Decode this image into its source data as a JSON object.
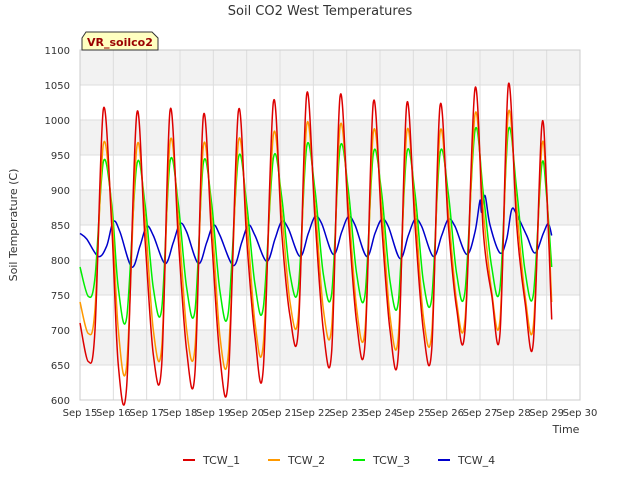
{
  "chart_data": {
    "type": "line",
    "title": "Soil CO2 West Temperatures",
    "xlabel": "Time",
    "ylabel": "Soil Temperature (C)",
    "annotation": "VR_soilco2",
    "xlim": [
      15,
      30
    ],
    "ylim": [
      600,
      1100
    ],
    "x_ticks": [
      {
        "v": 15,
        "label": "Sep 15"
      },
      {
        "v": 16,
        "label": "Sep 16"
      },
      {
        "v": 17,
        "label": "Sep 17"
      },
      {
        "v": 18,
        "label": "Sep 18"
      },
      {
        "v": 19,
        "label": "Sep 19"
      },
      {
        "v": 20,
        "label": "Sep 20"
      },
      {
        "v": 21,
        "label": "Sep 21"
      },
      {
        "v": 22,
        "label": "Sep 22"
      },
      {
        "v": 23,
        "label": "Sep 23"
      },
      {
        "v": 24,
        "label": "Sep 24"
      },
      {
        "v": 25,
        "label": "Sep 25"
      },
      {
        "v": 26,
        "label": "Sep 26"
      },
      {
        "v": 27,
        "label": "Sep 27"
      },
      {
        "v": 28,
        "label": "Sep 28"
      },
      {
        "v": 29,
        "label": "Sep 29"
      },
      {
        "v": 30,
        "label": "Sep 30"
      }
    ],
    "y_ticks": [
      600,
      650,
      700,
      750,
      800,
      850,
      900,
      950,
      1000,
      1050,
      1100
    ],
    "grid": true,
    "legend_position": "bottom",
    "series": [
      {
        "name": "TCW_1",
        "color": "#dd0000",
        "points": [
          [
            15.0,
            710
          ],
          [
            15.25,
            655
          ],
          [
            15.45,
            700
          ],
          [
            15.7,
            1015
          ],
          [
            15.95,
            850
          ],
          [
            16.15,
            650
          ],
          [
            16.4,
            620
          ],
          [
            16.7,
            1008
          ],
          [
            16.95,
            830
          ],
          [
            17.2,
            665
          ],
          [
            17.45,
            650
          ],
          [
            17.7,
            1013
          ],
          [
            17.95,
            830
          ],
          [
            18.2,
            670
          ],
          [
            18.45,
            640
          ],
          [
            18.7,
            1005
          ],
          [
            18.95,
            830
          ],
          [
            19.2,
            660
          ],
          [
            19.45,
            630
          ],
          [
            19.75,
            1012
          ],
          [
            20.0,
            830
          ],
          [
            20.25,
            690
          ],
          [
            20.5,
            645
          ],
          [
            20.8,
            1025
          ],
          [
            21.05,
            840
          ],
          [
            21.3,
            720
          ],
          [
            21.55,
            700
          ],
          [
            21.8,
            1037
          ],
          [
            22.05,
            860
          ],
          [
            22.3,
            700
          ],
          [
            22.55,
            670
          ],
          [
            22.8,
            1033
          ],
          [
            23.05,
            860
          ],
          [
            23.3,
            710
          ],
          [
            23.55,
            680
          ],
          [
            23.8,
            1025
          ],
          [
            24.05,
            850
          ],
          [
            24.3,
            700
          ],
          [
            24.55,
            665
          ],
          [
            24.8,
            1022
          ],
          [
            25.05,
            850
          ],
          [
            25.3,
            700
          ],
          [
            25.55,
            672
          ],
          [
            25.8,
            1020
          ],
          [
            26.05,
            850
          ],
          [
            26.3,
            730
          ],
          [
            26.55,
            700
          ],
          [
            26.85,
            1045
          ],
          [
            27.1,
            840
          ],
          [
            27.35,
            750
          ],
          [
            27.6,
            695
          ],
          [
            27.85,
            1050
          ],
          [
            28.1,
            850
          ],
          [
            28.35,
            740
          ],
          [
            28.6,
            682
          ],
          [
            28.85,
            990
          ],
          [
            29.0,
            900
          ],
          [
            29.15,
            715
          ]
        ]
      },
      {
        "name": "TCW_2",
        "color": "#ff9900",
        "points": [
          [
            15.0,
            740
          ],
          [
            15.25,
            695
          ],
          [
            15.45,
            730
          ],
          [
            15.7,
            965
          ],
          [
            15.95,
            870
          ],
          [
            16.15,
            700
          ],
          [
            16.4,
            650
          ],
          [
            16.7,
            960
          ],
          [
            16.95,
            860
          ],
          [
            17.2,
            700
          ],
          [
            17.45,
            675
          ],
          [
            17.7,
            968
          ],
          [
            17.95,
            860
          ],
          [
            18.2,
            700
          ],
          [
            18.45,
            675
          ],
          [
            18.7,
            962
          ],
          [
            18.95,
            860
          ],
          [
            19.2,
            690
          ],
          [
            19.45,
            665
          ],
          [
            19.75,
            968
          ],
          [
            20.0,
            860
          ],
          [
            20.25,
            710
          ],
          [
            20.5,
            680
          ],
          [
            20.8,
            978
          ],
          [
            21.05,
            870
          ],
          [
            21.3,
            740
          ],
          [
            21.55,
            720
          ],
          [
            21.8,
            993
          ],
          [
            22.05,
            880
          ],
          [
            22.3,
            730
          ],
          [
            22.55,
            705
          ],
          [
            22.8,
            990
          ],
          [
            23.05,
            880
          ],
          [
            23.3,
            730
          ],
          [
            23.55,
            700
          ],
          [
            23.8,
            982
          ],
          [
            24.05,
            875
          ],
          [
            24.3,
            720
          ],
          [
            24.55,
            690
          ],
          [
            24.8,
            982
          ],
          [
            25.05,
            875
          ],
          [
            25.3,
            720
          ],
          [
            25.55,
            695
          ],
          [
            25.8,
            982
          ],
          [
            26.05,
            870
          ],
          [
            26.3,
            740
          ],
          [
            26.55,
            715
          ],
          [
            26.85,
            1008
          ],
          [
            27.1,
            870
          ],
          [
            27.35,
            755
          ],
          [
            27.6,
            715
          ],
          [
            27.85,
            1010
          ],
          [
            28.1,
            875
          ],
          [
            28.35,
            750
          ],
          [
            28.6,
            705
          ],
          [
            28.85,
            960
          ],
          [
            29.0,
            900
          ],
          [
            29.15,
            740
          ]
        ]
      },
      {
        "name": "TCW_3",
        "color": "#00ee00",
        "points": [
          [
            15.0,
            790
          ],
          [
            15.25,
            748
          ],
          [
            15.45,
            775
          ],
          [
            15.7,
            940
          ],
          [
            15.95,
            880
          ],
          [
            16.15,
            760
          ],
          [
            16.4,
            718
          ],
          [
            16.7,
            935
          ],
          [
            16.95,
            880
          ],
          [
            17.2,
            760
          ],
          [
            17.45,
            730
          ],
          [
            17.7,
            940
          ],
          [
            17.95,
            880
          ],
          [
            18.2,
            760
          ],
          [
            18.45,
            728
          ],
          [
            18.7,
            938
          ],
          [
            18.95,
            880
          ],
          [
            19.2,
            755
          ],
          [
            19.45,
            725
          ],
          [
            19.75,
            945
          ],
          [
            20.0,
            880
          ],
          [
            20.25,
            765
          ],
          [
            20.5,
            732
          ],
          [
            20.8,
            945
          ],
          [
            21.05,
            890
          ],
          [
            21.3,
            780
          ],
          [
            21.55,
            760
          ],
          [
            21.8,
            962
          ],
          [
            22.05,
            900
          ],
          [
            22.3,
            780
          ],
          [
            22.55,
            752
          ],
          [
            22.8,
            960
          ],
          [
            23.05,
            900
          ],
          [
            23.3,
            780
          ],
          [
            23.55,
            750
          ],
          [
            23.8,
            952
          ],
          [
            24.05,
            895
          ],
          [
            24.3,
            770
          ],
          [
            24.55,
            740
          ],
          [
            24.8,
            952
          ],
          [
            25.05,
            895
          ],
          [
            25.3,
            770
          ],
          [
            25.55,
            745
          ],
          [
            25.8,
            952
          ],
          [
            26.05,
            895
          ],
          [
            26.3,
            780
          ],
          [
            26.55,
            755
          ],
          [
            26.85,
            985
          ],
          [
            27.1,
            895
          ],
          [
            27.35,
            790
          ],
          [
            27.6,
            760
          ],
          [
            27.85,
            985
          ],
          [
            28.1,
            900
          ],
          [
            28.35,
            785
          ],
          [
            28.6,
            750
          ],
          [
            28.85,
            935
          ],
          [
            29.0,
            890
          ],
          [
            29.15,
            790
          ]
        ]
      },
      {
        "name": "TCW_4",
        "color": "#0000cc",
        "points": [
          [
            15.0,
            838
          ],
          [
            15.2,
            830
          ],
          [
            15.55,
            805
          ],
          [
            15.8,
            820
          ],
          [
            16.0,
            855
          ],
          [
            16.2,
            840
          ],
          [
            16.55,
            790
          ],
          [
            16.8,
            820
          ],
          [
            17.0,
            848
          ],
          [
            17.2,
            835
          ],
          [
            17.55,
            795
          ],
          [
            17.8,
            825
          ],
          [
            18.0,
            852
          ],
          [
            18.2,
            840
          ],
          [
            18.55,
            795
          ],
          [
            18.8,
            825
          ],
          [
            19.0,
            850
          ],
          [
            19.2,
            835
          ],
          [
            19.6,
            792
          ],
          [
            19.85,
            825
          ],
          [
            20.05,
            850
          ],
          [
            20.25,
            835
          ],
          [
            20.6,
            798
          ],
          [
            20.85,
            830
          ],
          [
            21.05,
            855
          ],
          [
            21.25,
            845
          ],
          [
            21.6,
            805
          ],
          [
            21.85,
            838
          ],
          [
            22.05,
            862
          ],
          [
            22.25,
            852
          ],
          [
            22.6,
            808
          ],
          [
            22.85,
            840
          ],
          [
            23.05,
            862
          ],
          [
            23.25,
            850
          ],
          [
            23.6,
            805
          ],
          [
            23.85,
            838
          ],
          [
            24.05,
            858
          ],
          [
            24.25,
            848
          ],
          [
            24.6,
            802
          ],
          [
            24.85,
            835
          ],
          [
            25.05,
            858
          ],
          [
            25.25,
            848
          ],
          [
            25.6,
            805
          ],
          [
            25.85,
            835
          ],
          [
            26.05,
            858
          ],
          [
            26.25,
            848
          ],
          [
            26.6,
            808
          ],
          [
            26.85,
            840
          ],
          [
            27.0,
            885
          ],
          [
            27.05,
            868
          ],
          [
            27.15,
            892
          ],
          [
            27.3,
            850
          ],
          [
            27.6,
            810
          ],
          [
            27.8,
            830
          ],
          [
            27.95,
            872
          ],
          [
            28.1,
            865
          ],
          [
            28.4,
            835
          ],
          [
            28.65,
            810
          ],
          [
            28.9,
            838
          ],
          [
            29.05,
            852
          ],
          [
            29.15,
            835
          ]
        ]
      }
    ]
  }
}
